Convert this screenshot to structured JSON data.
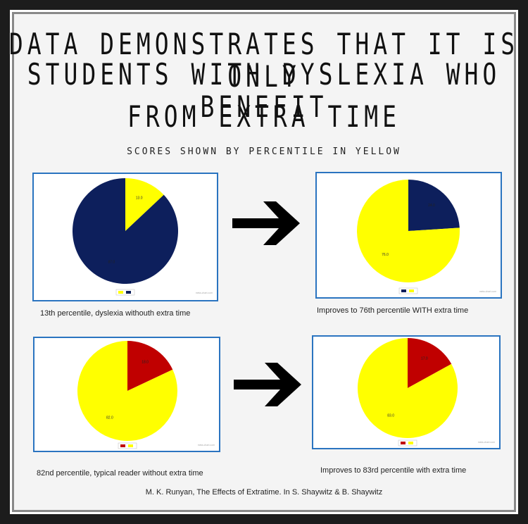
{
  "title_lines": [
    "DATA DEMONSTRATES THAT IT IS ONLY",
    "STUDENTS WITH DYSLEXIA WHO BENEFIT",
    "FROM EXTRA TIME"
  ],
  "subtitle": "SCORES SHOWN BY PERCENTILE IN YELLOW",
  "citation": "M. K. Runyan, The Effects of Extratime. In S. Shaywitz & B. Shaywitz",
  "chart_data": [
    {
      "type": "pie",
      "caption": "13th percentile, dyslexia withouth extra time",
      "credit": "meta-chart.com",
      "slices": [
        {
          "value": 13.0,
          "label": "13.0",
          "color": "#ffff00"
        },
        {
          "value": 87.0,
          "label": "87.0",
          "color": "#0d1f5c"
        }
      ]
    },
    {
      "type": "pie",
      "caption": "Improves to 76th percentile WITH extra time",
      "credit": "meta-chart.com",
      "slices": [
        {
          "value": 24.0,
          "label": "24.0",
          "color": "#0d1f5c"
        },
        {
          "value": 76.0,
          "label": "76.0",
          "color": "#ffff00"
        }
      ]
    },
    {
      "type": "pie",
      "caption": "82nd percentile, typical reader without extra time",
      "credit": "meta-chart.com",
      "slices": [
        {
          "value": 18.0,
          "label": "18.0",
          "color": "#c00000"
        },
        {
          "value": 82.0,
          "label": "82.0",
          "color": "#ffff00"
        }
      ]
    },
    {
      "type": "pie",
      "caption": "Improves to 83rd percentile with extra time",
      "credit": "meta-chart.com",
      "slices": [
        {
          "value": 17.0,
          "label": "17.0",
          "color": "#c00000"
        },
        {
          "value": 83.0,
          "label": "83.0",
          "color": "#ffff00"
        }
      ]
    }
  ],
  "icons": {
    "arrow": "right-arrow-icon"
  }
}
